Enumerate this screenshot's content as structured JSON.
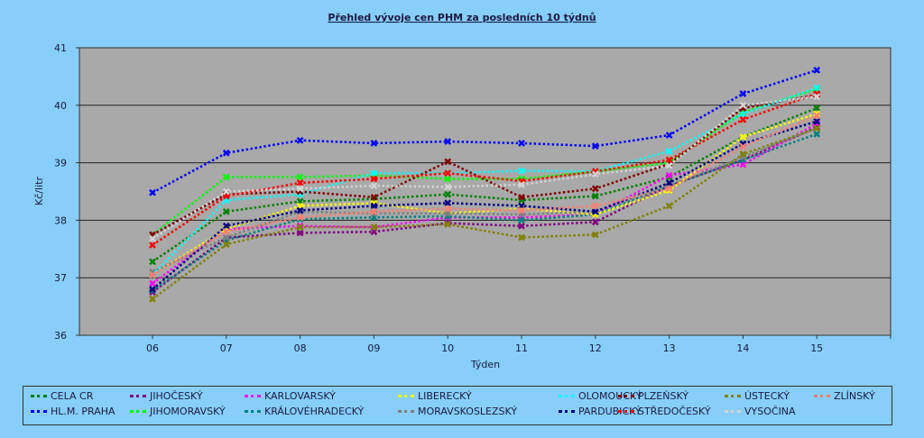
{
  "chart_data": {
    "type": "line",
    "title": "Přehled vývoje cen PHM za posledních 10 týdnů",
    "xlabel": "Týden",
    "ylabel": "Kč/litr",
    "ylim": [
      36,
      41
    ],
    "yticks": [
      "36",
      "37",
      "38",
      "39",
      "40",
      "41"
    ],
    "categories": [
      "06",
      "07",
      "08",
      "09",
      "10",
      "11",
      "12",
      "13",
      "14",
      "15"
    ],
    "grid": true,
    "legend": "bottom",
    "series": [
      {
        "name": "CELA CR",
        "color": "#008000",
        "values": [
          37.28,
          38.15,
          38.33,
          38.37,
          38.45,
          38.35,
          38.42,
          38.75,
          39.45,
          39.95
        ]
      },
      {
        "name": "HL.M. PRAHA",
        "color": "#0000ff",
        "values": [
          38.48,
          39.17,
          39.39,
          39.34,
          39.37,
          39.34,
          39.29,
          39.48,
          40.2,
          40.61
        ]
      },
      {
        "name": "JIHOČESKÝ",
        "color": "#800080",
        "values": [
          36.75,
          37.7,
          37.78,
          37.8,
          37.95,
          37.9,
          37.97,
          38.6,
          39.05,
          39.62
        ]
      },
      {
        "name": "JIHOMORAVSKÝ",
        "color": "#00ff00",
        "values": [
          37.75,
          38.75,
          38.75,
          38.78,
          38.72,
          38.72,
          38.85,
          39.0,
          39.88,
          40.28
        ]
      },
      {
        "name": "KARLOVARSKÝ",
        "color": "#ff00ff",
        "values": [
          36.9,
          37.85,
          37.9,
          37.88,
          38.05,
          38.05,
          38.1,
          38.78,
          38.97,
          39.68
        ]
      },
      {
        "name": "KRÁLOVÉHRADECKÝ",
        "color": "#008080",
        "values": [
          36.78,
          37.65,
          38.02,
          38.05,
          38.07,
          38.0,
          38.1,
          38.6,
          39.05,
          39.5
        ]
      },
      {
        "name": "LIBERECKÝ",
        "color": "#ffff00",
        "values": [
          37.05,
          37.85,
          38.25,
          38.3,
          38.12,
          38.2,
          38.1,
          38.52,
          39.45,
          39.85
        ]
      },
      {
        "name": "MORAVSKOSLEZSKÝ",
        "color": "#808080",
        "values": [
          37.1,
          37.7,
          38.15,
          38.12,
          38.12,
          38.1,
          38.15,
          38.6,
          39.1,
          39.6
        ]
      },
      {
        "name": "OLOMOUCKÝ",
        "color": "#00ffff",
        "values": [
          37.05,
          38.35,
          38.45,
          38.82,
          38.82,
          38.86,
          38.85,
          39.2,
          39.85,
          40.3
        ]
      },
      {
        "name": "PARDUBICKÝ",
        "color": "#000080",
        "values": [
          36.8,
          37.9,
          38.17,
          38.25,
          38.3,
          38.25,
          38.15,
          38.65,
          39.33,
          39.72
        ]
      },
      {
        "name": "PLZEŇSKÝ",
        "color": "#800000",
        "values": [
          37.75,
          38.45,
          38.5,
          38.4,
          39.02,
          38.4,
          38.55,
          38.98,
          39.95,
          40.18
        ]
      },
      {
        "name": "STŘEDOČESKÝ",
        "color": "#ff0000",
        "values": [
          37.57,
          38.42,
          38.65,
          38.72,
          38.82,
          38.68,
          38.85,
          39.05,
          39.75,
          40.2
        ]
      },
      {
        "name": "ÚSTECKÝ",
        "color": "#808000",
        "values": [
          36.63,
          37.58,
          37.88,
          37.88,
          37.93,
          37.7,
          37.75,
          38.25,
          39.15,
          39.6
        ]
      },
      {
        "name": "VYSOČINA",
        "color": "#d3d3d3",
        "values": [
          37.68,
          38.5,
          38.55,
          38.6,
          38.58,
          38.62,
          38.8,
          38.95,
          40.0,
          40.15
        ]
      },
      {
        "name": "ZLÍNSKÝ",
        "color": "#fa8072",
        "values": [
          37.05,
          37.8,
          38.05,
          38.15,
          38.2,
          38.17,
          38.25,
          38.55,
          39.28,
          39.82
        ]
      }
    ]
  }
}
